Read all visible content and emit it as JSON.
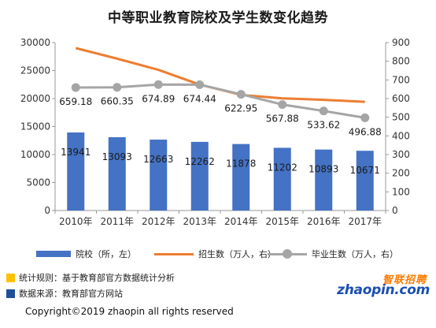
{
  "title": "中等职业教育院校及学生数变化趋势",
  "chart_data": {
    "type": "bar",
    "categories": [
      "2010年",
      "2011年",
      "2012年",
      "2013年",
      "2014年",
      "2015年",
      "2016年",
      "2017年"
    ],
    "series": [
      {
        "name": "院校（所，左）",
        "type": "bar",
        "axis": "left",
        "color": "#4472c4",
        "values": [
          13941,
          13093,
          12663,
          12262,
          11878,
          11202,
          10893,
          10671
        ],
        "labels": [
          "13941",
          "13093",
          "12663",
          "12262",
          "11878",
          "11202",
          "10893",
          "10671"
        ]
      },
      {
        "name": "招生数（万人，右）",
        "type": "line",
        "axis": "right",
        "color": "#ed7d31",
        "values": [
          870.4,
          813.9,
          754.1,
          674.8,
          619.8,
          601.2,
          593.3,
          582.4
        ]
      },
      {
        "name": "毕业生数（万人，右）",
        "type": "line",
        "axis": "right",
        "color": "#a5a5a5",
        "values": [
          659.18,
          660.35,
          674.89,
          674.44,
          622.95,
          567.88,
          533.62,
          496.88
        ],
        "labels": [
          "659.18",
          "660.35",
          "674.89",
          "674.44",
          "622.95",
          "567.88",
          "533.62",
          "496.88"
        ]
      }
    ],
    "y_left": {
      "ylim": [
        0,
        30000
      ],
      "ticks": [
        "0",
        "5000",
        "10000",
        "15000",
        "20000",
        "25000",
        "30000"
      ]
    },
    "y_right": {
      "ylim": [
        0,
        900
      ],
      "ticks": [
        "0",
        "100",
        "200",
        "300",
        "400",
        "500",
        "600",
        "700",
        "800",
        "900"
      ]
    },
    "grid": false,
    "legend_position": "bottom"
  },
  "legend": {
    "bar_label": "院校（所，左）",
    "enroll_label": "招生数（万人，右）",
    "grad_label": "毕业生数（万人，右）"
  },
  "notes": {
    "rule": "统计规则：基于教育部官方数据统计分析",
    "source": "数据来源：教育部官方网站"
  },
  "colors": {
    "bar": "#4472c4",
    "enroll": "#ed7d31",
    "grad": "#a5a5a5",
    "note_rule": "#ffc000",
    "note_source": "#1f4e9a"
  },
  "copyright": "Copyright©2019 zhaopin all rights reserved",
  "logo": {
    "cn": "智联招聘",
    "en": "zhaopin.com"
  }
}
